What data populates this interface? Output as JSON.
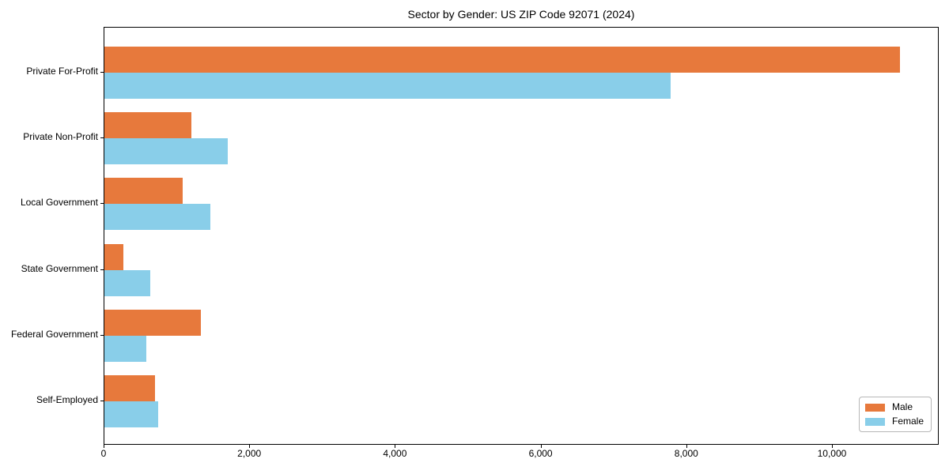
{
  "chart_data": {
    "type": "bar",
    "orientation": "horizontal",
    "title": "Sector by Gender: US ZIP Code 92071 (2024)",
    "categories": [
      "Private For-Profit",
      "Private Non-Profit",
      "Local Government",
      "State Government",
      "Federal Government",
      "Self-Employed"
    ],
    "series": [
      {
        "name": "Male",
        "color": "#e7793c",
        "values": [
          10920,
          1190,
          1070,
          260,
          1330,
          700
        ]
      },
      {
        "name": "Female",
        "color": "#89cee9",
        "values": [
          7770,
          1690,
          1460,
          630,
          580,
          740
        ]
      }
    ],
    "xlabel": "",
    "ylabel": "",
    "xlim": [
      0,
      11466
    ],
    "x_ticks": [
      0,
      2000,
      4000,
      6000,
      8000,
      10000
    ],
    "x_tick_labels": [
      "0",
      "2,000",
      "4,000",
      "6,000",
      "8,000",
      "10,000"
    ],
    "grid": false,
    "background_color": "#ffffff",
    "spine_color": "#000000",
    "legend": {
      "position": "lower right",
      "entries": [
        "Male",
        "Female"
      ]
    }
  }
}
